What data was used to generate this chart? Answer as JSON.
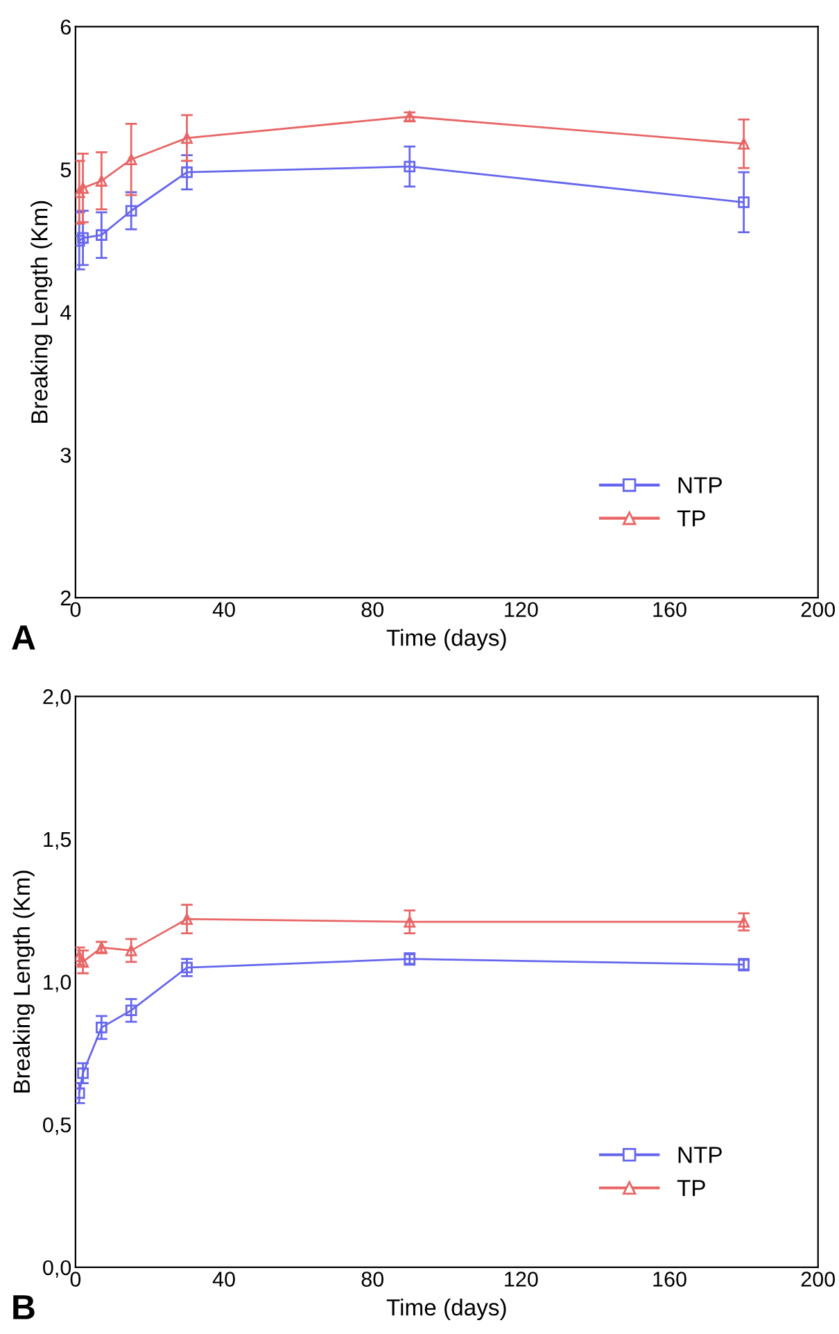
{
  "chart_data": [
    {
      "type": "line",
      "xlabel": "Time (days)",
      "ylabel": "Breaking Length (Km)",
      "annotations": [
        "A"
      ],
      "x": [
        1,
        2,
        7,
        15,
        30,
        90,
        180
      ],
      "xlim": [
        0,
        200
      ],
      "xticks": [
        0,
        40,
        80,
        120,
        160,
        200
      ],
      "ylim": [
        2,
        6
      ],
      "yticks": [
        2,
        3,
        4,
        5,
        6
      ],
      "grid": false,
      "legend": "bottom right",
      "line_style": "solid",
      "series": [
        {
          "name": "NTP",
          "color": "#6666ee",
          "marker": "square",
          "values": [
            4.5,
            4.52,
            4.54,
            4.71,
            4.98,
            5.02,
            4.77
          ],
          "errors": [
            0.2,
            0.19,
            0.16,
            0.13,
            0.12,
            0.14,
            0.21
          ]
        },
        {
          "name": "TP",
          "color": "#e86666",
          "marker": "triangle",
          "values": [
            4.84,
            4.87,
            4.92,
            5.07,
            5.22,
            5.37,
            5.18
          ],
          "errors": [
            0.22,
            0.24,
            0.2,
            0.25,
            0.16,
            0.03,
            0.17
          ]
        }
      ]
    },
    {
      "type": "line",
      "xlabel": "Time (days)",
      "ylabel": "Breaking Length (Km)",
      "annotations": [
        "B"
      ],
      "x": [
        1,
        2,
        7,
        15,
        30,
        90,
        180
      ],
      "xlim": [
        0,
        200
      ],
      "xticks": [
        0,
        40,
        80,
        120,
        160,
        200
      ],
      "ylim": [
        0,
        2
      ],
      "yticks": [
        {
          "value": 0,
          "label": "0,0"
        },
        {
          "value": 0.5,
          "label": "0,5"
        },
        {
          "value": 1,
          "label": "1,0"
        },
        {
          "value": 1.5,
          "label": "1,5"
        },
        {
          "value": 2,
          "label": "2,0"
        }
      ],
      "grid": false,
      "legend": "bottom right",
      "line_style": "solid",
      "series": [
        {
          "name": "NTP",
          "color": "#6666ee",
          "marker": "square",
          "values": [
            0.61,
            0.68,
            0.84,
            0.9,
            1.05,
            1.08,
            1.06
          ],
          "errors": [
            0.035,
            0.035,
            0.04,
            0.04,
            0.03,
            0.02,
            0.02
          ]
        },
        {
          "name": "TP",
          "color": "#e86666",
          "marker": "triangle",
          "values": [
            1.09,
            1.07,
            1.12,
            1.11,
            1.22,
            1.21,
            1.21
          ],
          "errors": [
            0.03,
            0.04,
            0.02,
            0.04,
            0.05,
            0.04,
            0.03
          ]
        }
      ]
    }
  ]
}
